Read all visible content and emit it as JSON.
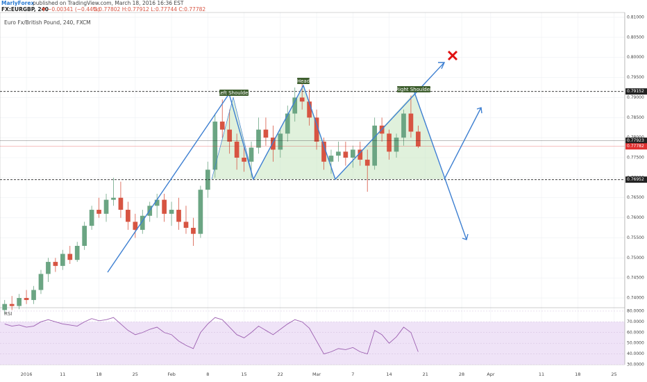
{
  "header": {
    "author": "MarlyForex",
    "published": "published on TradingView.com, March 18, 2016 16:36 EST",
    "symbol": "FX:EURGBP, 240",
    "change": "▼ −0.00341 (−0.44%)",
    "ohlc": "O:0.77802 H:0.77912 L:0.77744 C:0.77782"
  },
  "chart_data": {
    "type": "candlestick",
    "title": "Euro Fx/British Pound, 240, FXCM",
    "categories": [
      null,
      null,
      null,
      "2016",
      null,
      null,
      null,
      null,
      "11",
      null,
      null,
      null,
      null,
      "18",
      null,
      null,
      null,
      null,
      "25",
      null,
      null,
      null,
      null,
      "Feb",
      null,
      null,
      null,
      null,
      "8",
      null,
      null,
      null,
      null,
      "15",
      null,
      null,
      null,
      null,
      "22",
      null,
      null,
      null,
      null,
      "Mar",
      null,
      null,
      null,
      null,
      "7",
      null,
      null,
      null,
      null,
      "14",
      null,
      null,
      null,
      null,
      "21",
      null,
      null,
      null,
      null,
      "28",
      null,
      null,
      null,
      "Apr",
      null,
      null,
      null,
      null,
      null,
      null,
      "11",
      null,
      null,
      null,
      null,
      "18",
      null,
      null,
      null,
      null,
      "25",
      null
    ],
    "open": [
      0.737,
      0.7385,
      0.738,
      0.74,
      0.7395,
      0.742,
      0.746,
      0.749,
      0.748,
      0.751,
      0.7495,
      0.753,
      0.758,
      0.762,
      0.761,
      0.7645,
      0.765,
      0.762,
      0.759,
      0.757,
      0.7605,
      0.763,
      0.7645,
      0.761,
      0.762,
      0.759,
      0.7575,
      0.756,
      0.767,
      0.772,
      0.784,
      0.782,
      0.779,
      0.775,
      0.774,
      0.7775,
      0.782,
      0.78,
      0.777,
      0.781,
      0.786,
      0.79,
      0.789,
      0.785,
      0.779,
      0.774,
      0.7755,
      0.7765,
      0.775,
      0.777,
      0.7745,
      0.773,
      0.783,
      0.781,
      0.7765,
      0.78,
      0.786,
      0.7815,
      null,
      null,
      null,
      null,
      null,
      null,
      null,
      null,
      null,
      null,
      null,
      null,
      null,
      null,
      null,
      null,
      null,
      null,
      null,
      null,
      null,
      null,
      null,
      null,
      null,
      null,
      null,
      null
    ],
    "high": [
      0.7395,
      0.7405,
      0.741,
      0.742,
      0.743,
      0.747,
      0.75,
      0.75,
      0.752,
      0.753,
      0.754,
      0.759,
      0.763,
      0.765,
      0.766,
      0.77,
      0.769,
      0.764,
      0.761,
      0.762,
      0.764,
      0.766,
      0.766,
      0.764,
      0.765,
      0.763,
      0.76,
      0.768,
      0.774,
      0.786,
      0.7895,
      0.787,
      0.781,
      0.778,
      0.779,
      0.785,
      0.785,
      0.783,
      0.782,
      0.788,
      0.7925,
      0.7935,
      0.792,
      0.787,
      0.78,
      0.777,
      0.779,
      0.779,
      0.778,
      0.779,
      0.777,
      0.785,
      0.785,
      0.782,
      0.781,
      0.787,
      0.7905,
      0.783,
      null,
      null,
      null,
      null,
      null,
      null,
      null,
      null,
      null,
      null,
      null,
      null,
      null,
      null,
      null,
      null,
      null,
      null,
      null,
      null,
      null,
      null,
      null,
      null,
      null,
      null,
      null,
      null
    ],
    "low": [
      0.736,
      0.737,
      0.7372,
      0.7385,
      0.7385,
      0.741,
      0.744,
      0.7465,
      0.747,
      0.7485,
      0.749,
      0.752,
      0.757,
      0.76,
      0.759,
      0.763,
      0.76,
      0.757,
      0.755,
      0.756,
      0.759,
      0.76,
      0.759,
      0.758,
      0.757,
      0.756,
      0.753,
      0.755,
      0.765,
      0.77,
      0.78,
      0.776,
      0.772,
      0.7715,
      0.77,
      0.776,
      0.778,
      0.774,
      0.775,
      0.779,
      0.784,
      0.787,
      0.783,
      0.777,
      0.772,
      0.771,
      0.774,
      0.773,
      0.7725,
      0.773,
      0.7665,
      0.772,
      0.779,
      0.7745,
      0.775,
      0.778,
      0.78,
      0.7774,
      null,
      null,
      null,
      null,
      null,
      null,
      null,
      null,
      null,
      null,
      null,
      null,
      null,
      null,
      null,
      null,
      null,
      null,
      null,
      null,
      null,
      null,
      null,
      null,
      null,
      null,
      null,
      null
    ],
    "close": [
      0.7385,
      0.738,
      0.74,
      0.7395,
      0.742,
      0.746,
      0.749,
      0.748,
      0.751,
      0.7495,
      0.753,
      0.758,
      0.762,
      0.761,
      0.7645,
      0.765,
      0.762,
      0.759,
      0.757,
      0.7605,
      0.763,
      0.7645,
      0.761,
      0.762,
      0.759,
      0.7575,
      0.756,
      0.767,
      0.772,
      0.784,
      0.782,
      0.779,
      0.775,
      0.774,
      0.7775,
      0.782,
      0.78,
      0.777,
      0.781,
      0.786,
      0.79,
      0.789,
      0.785,
      0.779,
      0.774,
      0.7755,
      0.7765,
      0.775,
      0.777,
      0.7745,
      0.773,
      0.783,
      0.781,
      0.7765,
      0.78,
      0.786,
      0.7815,
      0.7778,
      null,
      null,
      null,
      null,
      null,
      null,
      null,
      null,
      null,
      null,
      null,
      null,
      null,
      null,
      null,
      null,
      null,
      null,
      null,
      null,
      null,
      null,
      null,
      null,
      null,
      null,
      null,
      null
    ],
    "up_color": "#6ba583",
    "down_color": "#d75442",
    "ylim": [
      0.73758,
      0.81121
    ],
    "yticks": [
      {
        "value": 0.81,
        "label": "0.81000"
      },
      {
        "value": 0.805,
        "label": "0.80500"
      },
      {
        "value": 0.8,
        "label": "0.80000"
      },
      {
        "value": 0.795,
        "label": "0.79500"
      },
      {
        "value": 0.79,
        "label": "0.79000"
      },
      {
        "value": 0.785,
        "label": "0.78500"
      },
      {
        "value": 0.78,
        "label": "0.78000"
      },
      {
        "value": 0.775,
        "label": "0.77500"
      },
      {
        "value": 0.77,
        "label": "0.77000"
      },
      {
        "value": 0.765,
        "label": "0.76500"
      },
      {
        "value": 0.76,
        "label": "0.76000"
      },
      {
        "value": 0.755,
        "label": "0.75500"
      },
      {
        "value": 0.75,
        "label": "0.75000"
      },
      {
        "value": 0.745,
        "label": "0.74500"
      },
      {
        "value": 0.74,
        "label": "0.74000"
      }
    ],
    "price_markers": [
      {
        "value": 0.79152,
        "label": "0.79152",
        "color": "#222222"
      },
      {
        "value": 0.77923,
        "label": "0.77923",
        "color": "#222222"
      },
      {
        "value": 0.77782,
        "label": "0.77782",
        "color": "#e03030"
      },
      {
        "value": 0.76952,
        "label": "0.76952",
        "color": "#222222"
      }
    ],
    "grid": true,
    "annotations": {
      "left": "Left Shoulder",
      "head": "Head",
      "right": "Right Shoulder"
    },
    "rsi": {
      "name": "RSI",
      "color": "#9c5fb0",
      "band": [
        30,
        70
      ],
      "ylim": [
        30,
        83.2
      ],
      "yticks": [
        {
          "value": 80,
          "label": "80.0000"
        },
        {
          "value": 70,
          "label": "70.0000"
        },
        {
          "value": 60,
          "label": "60.0000"
        },
        {
          "value": 50,
          "label": "50.0000"
        },
        {
          "value": 40,
          "label": "40.0000"
        },
        {
          "value": 30,
          "label": "30.0000"
        }
      ],
      "values": [
        68,
        66,
        67,
        65,
        66,
        70,
        72,
        70,
        68,
        67,
        66,
        70,
        73,
        71,
        72,
        74,
        68,
        62,
        58,
        60,
        63,
        65,
        60,
        58,
        52,
        48,
        45,
        60,
        68,
        74,
        72,
        65,
        58,
        55,
        60,
        66,
        62,
        58,
        63,
        68,
        72,
        70,
        64,
        52,
        40,
        42,
        45,
        44,
        46,
        42,
        40,
        62,
        58,
        50,
        56,
        65,
        60,
        42,
        null,
        null,
        null,
        null,
        null,
        null,
        null,
        null,
        null,
        null,
        null,
        null,
        null,
        null,
        null,
        null,
        null,
        null,
        null,
        null,
        null,
        null,
        null,
        null,
        null,
        null,
        null,
        null
      ]
    }
  }
}
